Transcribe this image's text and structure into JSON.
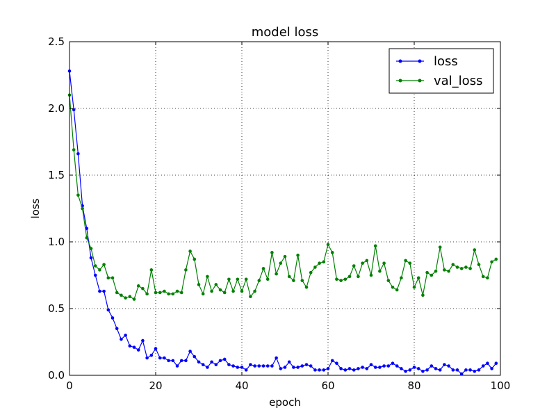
{
  "chart_data": {
    "type": "line",
    "title": "model loss",
    "xlabel": "epoch",
    "ylabel": "loss",
    "xlim": [
      0,
      100
    ],
    "ylim": [
      0.0,
      2.5
    ],
    "xticks": [
      0,
      20,
      40,
      60,
      80,
      100
    ],
    "yticks": [
      0.0,
      0.5,
      1.0,
      1.5,
      2.0,
      2.5
    ],
    "grid": true,
    "legend_position": "top-right",
    "series": [
      {
        "name": "loss",
        "color": "#0000ff",
        "values": [
          2.28,
          1.99,
          1.66,
          1.27,
          1.1,
          0.88,
          0.75,
          0.63,
          0.63,
          0.49,
          0.43,
          0.35,
          0.27,
          0.3,
          0.22,
          0.21,
          0.19,
          0.26,
          0.13,
          0.15,
          0.2,
          0.13,
          0.13,
          0.11,
          0.11,
          0.07,
          0.11,
          0.11,
          0.18,
          0.14,
          0.1,
          0.08,
          0.06,
          0.1,
          0.08,
          0.11,
          0.12,
          0.08,
          0.07,
          0.06,
          0.06,
          0.04,
          0.08,
          0.07,
          0.07,
          0.07,
          0.07,
          0.07,
          0.13,
          0.05,
          0.06,
          0.1,
          0.06,
          0.06,
          0.07,
          0.08,
          0.07,
          0.04,
          0.04,
          0.04,
          0.05,
          0.11,
          0.09,
          0.05,
          0.04,
          0.05,
          0.04,
          0.05,
          0.06,
          0.05,
          0.08,
          0.06,
          0.06,
          0.07,
          0.07,
          0.09,
          0.07,
          0.05,
          0.03,
          0.04,
          0.06,
          0.05,
          0.03,
          0.04,
          0.07,
          0.05,
          0.04,
          0.08,
          0.07,
          0.04,
          0.04,
          0.01,
          0.04,
          0.04,
          0.03,
          0.04,
          0.07,
          0.09,
          0.05,
          0.09
        ]
      },
      {
        "name": "val_loss",
        "color": "#008000",
        "values": [
          2.1,
          1.69,
          1.35,
          1.25,
          1.03,
          0.95,
          0.82,
          0.79,
          0.83,
          0.73,
          0.73,
          0.62,
          0.6,
          0.58,
          0.59,
          0.57,
          0.67,
          0.65,
          0.61,
          0.79,
          0.62,
          0.62,
          0.63,
          0.61,
          0.61,
          0.63,
          0.62,
          0.79,
          0.93,
          0.87,
          0.68,
          0.61,
          0.74,
          0.63,
          0.68,
          0.64,
          0.62,
          0.72,
          0.63,
          0.72,
          0.63,
          0.72,
          0.59,
          0.63,
          0.71,
          0.8,
          0.72,
          0.92,
          0.76,
          0.84,
          0.89,
          0.74,
          0.71,
          0.9,
          0.71,
          0.66,
          0.77,
          0.81,
          0.84,
          0.85,
          0.98,
          0.92,
          0.72,
          0.71,
          0.72,
          0.74,
          0.82,
          0.74,
          0.84,
          0.86,
          0.75,
          0.97,
          0.78,
          0.84,
          0.71,
          0.66,
          0.64,
          0.73,
          0.86,
          0.84,
          0.66,
          0.73,
          0.6,
          0.77,
          0.75,
          0.78,
          0.96,
          0.79,
          0.78,
          0.83,
          0.81,
          0.8,
          0.81,
          0.8,
          0.94,
          0.83,
          0.74,
          0.73,
          0.85,
          0.87
        ]
      }
    ]
  }
}
